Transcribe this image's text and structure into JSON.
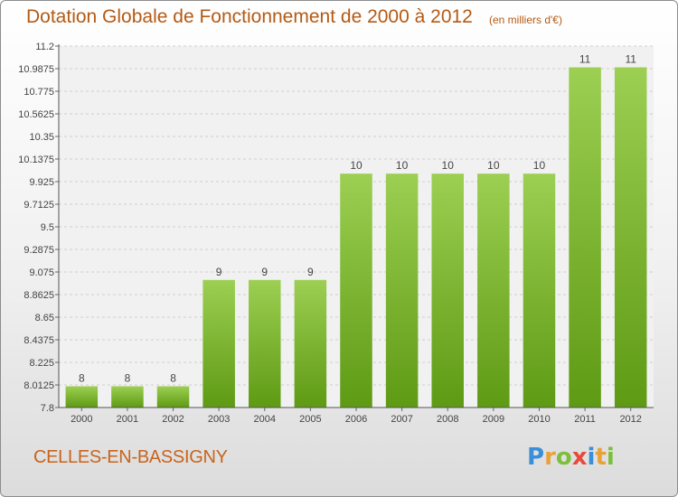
{
  "header": {
    "title": "Dotation Globale de Fonctionnement de 2000 à 2012",
    "unit": "(en milliers d'€)"
  },
  "footer": {
    "commune": "CELLES-EN-BASSIGNY",
    "logo_letters": [
      "P",
      "r",
      "o",
      "x",
      "i",
      "t",
      "i"
    ],
    "logo_colors": [
      "#3a8fd8",
      "#e8a23a",
      "#7cbf3a",
      "#e84a3a",
      "#3a8fd8",
      "#e8a23a",
      "#7cbf3a"
    ]
  },
  "colors": {
    "bar_top": "#9ccf52",
    "bar_bottom": "#5e9a14",
    "title": "#b45a14",
    "grid": "#cfcfcf"
  },
  "chart_data": {
    "type": "bar",
    "title": "Dotation Globale de Fonctionnement de 2000 à 2012",
    "subtitle": "(en milliers d'€)",
    "xlabel": "",
    "ylabel": "",
    "categories": [
      "2000",
      "2001",
      "2002",
      "2003",
      "2004",
      "2005",
      "2006",
      "2007",
      "2008",
      "2009",
      "2010",
      "2011",
      "2012"
    ],
    "values": [
      8,
      8,
      8,
      9,
      9,
      9,
      10,
      10,
      10,
      10,
      10,
      11,
      11
    ],
    "value_labels": [
      "8",
      "8",
      "8",
      "9",
      "9",
      "9",
      "10",
      "10",
      "10",
      "10",
      "10",
      "11",
      "11"
    ],
    "ylim": [
      7.8,
      11.2
    ],
    "yticks": [
      7.8,
      8.0125,
      8.225,
      8.4375,
      8.65,
      8.8625,
      9.075,
      9.2875,
      9.5,
      9.7125,
      9.925,
      10.1375,
      10.35,
      10.5625,
      10.775,
      10.9875,
      11.2
    ],
    "ytick_labels": [
      "7.8",
      "8.0125",
      "8.225",
      "8.4375",
      "8.65",
      "8.8625",
      "9.075",
      "9.2875",
      "9.5",
      "9.7125",
      "9.925",
      "10.1375",
      "10.35",
      "10.5625",
      "10.775",
      "10.9875",
      "11.2"
    ],
    "grid": true,
    "legend": "none"
  }
}
